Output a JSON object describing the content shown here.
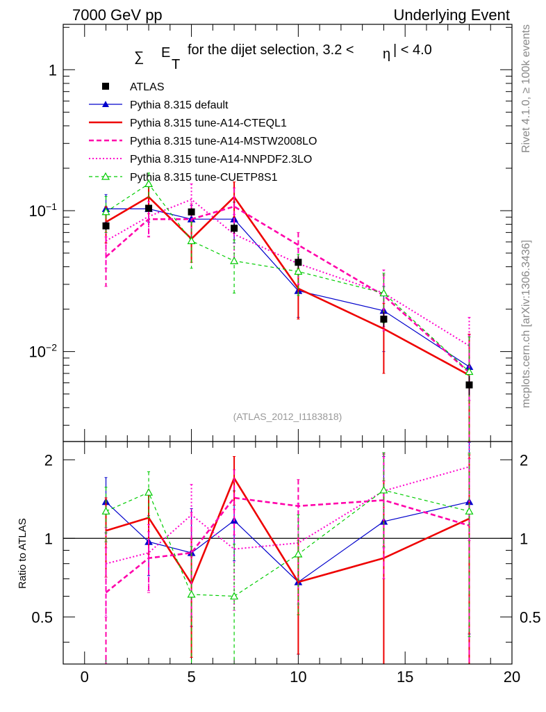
{
  "header": {
    "left": "7000 GeV pp",
    "right": "Underlying Event"
  },
  "side_labels": {
    "rivet": "Rivet 4.1.0, ≥ 100k events",
    "source": "mcplots.cern.ch [arXiv:1306.3436]"
  },
  "analysis_label": "(ATLAS_2012_I1183818)",
  "chart_data": {
    "type": "line",
    "title": {
      "sum_symbol": "∑",
      "et": "E",
      "et_sub": "T",
      "text": "for the dijet selection, 3.2 <",
      "eta": "η",
      "text2": "| < 4.0"
    },
    "xlabel": "",
    "ylabel": "",
    "ratio_ylabel": "Ratio to ATLAS",
    "xlim": [
      -1,
      20
    ],
    "ylim": [
      0.0023,
      2.1
    ],
    "yscale": "log",
    "ratio_ylim": [
      0.33,
      2.35
    ],
    "ratio_yscale": "log",
    "x_ticks": [
      0,
      5,
      10,
      15,
      20
    ],
    "x_tick_labels": [
      "0",
      "5",
      "10",
      "15",
      "20"
    ],
    "y_ticks": [
      0.01,
      0.1,
      1
    ],
    "y_tick_labels": [
      {
        "base": "10",
        "exp": "−2"
      },
      {
        "base": "10",
        "exp": "−1"
      },
      {
        "base": "1",
        "exp": ""
      }
    ],
    "ratio_y_ticks": [
      0.5,
      1,
      2
    ],
    "ratio_y_tick_labels": [
      "0.5",
      "1",
      "2"
    ],
    "x": [
      1,
      3,
      5,
      7,
      10,
      14,
      18
    ],
    "data": {
      "name": "ATLAS",
      "values": [
        0.078,
        0.104,
        0.098,
        0.075,
        0.043,
        0.017,
        0.0058
      ],
      "errors": [
        0.005,
        0.005,
        0.006,
        0.006,
        0.004,
        0.002,
        0.0009
      ]
    },
    "series": [
      {
        "name": "Pythia 8.315 default",
        "color": "#0000cc",
        "dash": "",
        "width": 1.2,
        "marker": "triangle-filled",
        "values": [
          0.103,
          0.103,
          0.087,
          0.087,
          0.027,
          0.0195,
          0.0078
        ],
        "errors": [
          0.027,
          0.02,
          0.022,
          0.028,
          0.0095,
          0.0095,
          0.0055
        ],
        "ratio": [
          1.38,
          0.97,
          0.88,
          1.17,
          0.68,
          1.16,
          1.38
        ],
        "ratio_errors": [
          0.33,
          0.25,
          0.42,
          0.35,
          0.32,
          0.9,
          0.95
        ]
      },
      {
        "name": "Pythia 8.315 tune-A14-CTEQL1",
        "color": "#ee0000",
        "dash": "",
        "width": 2.6,
        "marker": "none",
        "values": [
          0.083,
          0.125,
          0.063,
          0.125,
          0.028,
          0.0145,
          0.0068
        ],
        "errors": [
          0.024,
          0.03,
          0.02,
          0.035,
          0.011,
          0.0075,
          0.0065
        ],
        "ratio": [
          1.07,
          1.2,
          0.67,
          1.7,
          0.68,
          0.84,
          1.19
        ],
        "ratio_errors": [
          0.36,
          0.33,
          0.32,
          0.36,
          0.32,
          0.82,
          0.9
        ]
      },
      {
        "name": "Pythia 8.315 tune-A14-MSTW2008LO",
        "color": "#ff00aa",
        "dash": "7,4",
        "width": 2.6,
        "marker": "none",
        "values": [
          0.047,
          0.087,
          0.087,
          0.107,
          0.057,
          0.025,
          0.0071
        ],
        "errors": [
          0.018,
          0.022,
          0.025,
          0.038,
          0.013,
          0.01,
          0.006
        ],
        "ratio": [
          0.62,
          0.84,
          0.88,
          1.43,
          1.33,
          1.4,
          1.12
        ],
        "ratio_errors": [
          0.3,
          0.22,
          0.38,
          0.4,
          0.35,
          0.7,
          0.9
        ]
      },
      {
        "name": "Pythia 8.315 tune-A14-NNPDF2.3LO",
        "color": "#ff00cc",
        "dash": "2,3",
        "width": 2.0,
        "marker": "none",
        "values": [
          0.061,
          0.091,
          0.12,
          0.068,
          0.042,
          0.026,
          0.011
        ],
        "errors": [
          0.022,
          0.025,
          0.035,
          0.026,
          0.012,
          0.012,
          0.0065
        ],
        "ratio": [
          0.8,
          0.88,
          1.23,
          0.91,
          0.96,
          1.52,
          1.88
        ],
        "ratio_errors": [
          0.3,
          0.25,
          0.38,
          0.38,
          0.4,
          0.6,
          0.9
        ]
      },
      {
        "name": "Pythia 8.315 tune-CUETP8S1",
        "color": "#00cc00",
        "dash": "5,4",
        "width": 1.2,
        "marker": "triangle-open",
        "values": [
          0.098,
          0.155,
          0.061,
          0.044,
          0.037,
          0.026,
          0.0072
        ],
        "errors": [
          0.028,
          0.03,
          0.022,
          0.018,
          0.012,
          0.01,
          0.0055
        ],
        "ratio": [
          1.27,
          1.5,
          0.61,
          0.6,
          0.87,
          1.53,
          1.27
        ],
        "ratio_errors": [
          0.3,
          0.3,
          0.32,
          0.35,
          0.36,
          0.6,
          0.85
        ]
      }
    ]
  }
}
